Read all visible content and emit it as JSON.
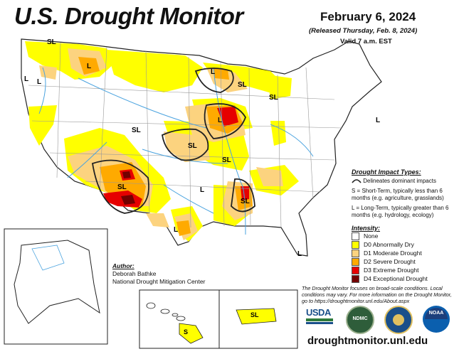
{
  "header": {
    "title": "U.S. Drought Monitor",
    "date": "February 6, 2024",
    "released": "(Released Thursday, Feb. 8, 2024)",
    "valid": "Valid 7 a.m. EST"
  },
  "impact_legend": {
    "heading": "Drought Impact Types:",
    "boundary": "Delineates dominant impacts",
    "short_term": "S = Short-Term, typically less than 6 months (e.g. agriculture, grasslands)",
    "long_term": "L = Long-Term, typically greater than 6 months (e.g. hydrology, ecology)"
  },
  "intensity_legend": {
    "heading": "Intensity:",
    "items": [
      {
        "label": "None",
        "color": "#ffffff"
      },
      {
        "label": "D0 Abnormally Dry",
        "color": "#ffff00"
      },
      {
        "label": "D1 Moderate Drought",
        "color": "#fcd37f"
      },
      {
        "label": "D2 Severe Drought",
        "color": "#ffaa00"
      },
      {
        "label": "D3 Extreme Drought",
        "color": "#e60000"
      },
      {
        "label": "D4 Exceptional Drought",
        "color": "#730000"
      }
    ]
  },
  "author": {
    "heading": "Author:",
    "name": "Deborah Bathke",
    "org": "National Drought Mitigation Center"
  },
  "disclaimer": "The Drought Monitor focuses on broad-scale conditions. Local conditions may vary. For more information on the Drought Monitor, go to https://droughtmonitor.unl.edu/About.aspx",
  "url": "droughtmonitor.unl.edu",
  "logos": {
    "usda": "USDA",
    "ndmc": "NDMC",
    "commerce": "commerce-seal",
    "noaa": "NOAA"
  },
  "map_labels": {
    "sl": "SL",
    "l": "L",
    "s": "S"
  },
  "colors": {
    "river": "#4aa3df",
    "boundary": "#222222",
    "state_line": "#999999"
  }
}
